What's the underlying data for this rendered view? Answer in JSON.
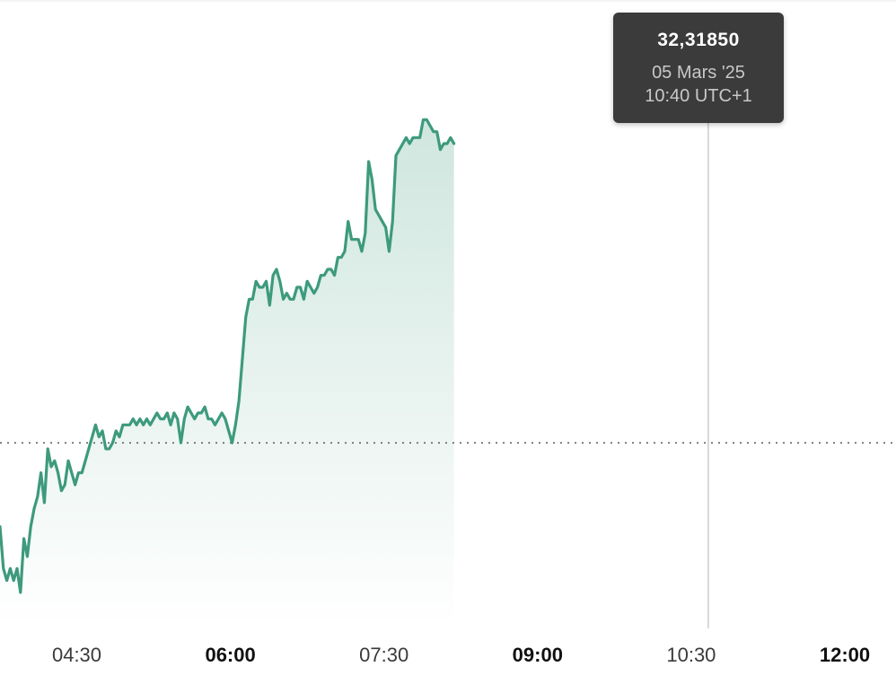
{
  "tooltip": {
    "value": "32,31850",
    "date": "05 Mars '25",
    "time": "10:40 UTC+1"
  },
  "colors": {
    "line": "#3d9a7d",
    "area_top": "#cfe6de",
    "area_bottom": "#ffffff",
    "reference_line": "#555555",
    "crosshair": "#cccccc",
    "tooltip_bg": "#3b3b3b"
  },
  "chart_data": {
    "type": "area",
    "title": "",
    "xlabel": "",
    "ylabel": "",
    "x_ticks": [
      {
        "label": "04:30",
        "major": false
      },
      {
        "label": "06:00",
        "major": true
      },
      {
        "label": "07:30",
        "major": false
      },
      {
        "label": "09:00",
        "major": true
      },
      {
        "label": "10:30",
        "major": false
      },
      {
        "label": "12:00",
        "major": true
      }
    ],
    "x_range_minutes": [
      225,
      750
    ],
    "y_range": [
      31.4,
      32.45
    ],
    "reference_value": 31.71,
    "grid": false,
    "legend": "none",
    "highlight": {
      "minute": 640,
      "value": 32.3185
    },
    "series": [
      {
        "points": [
          [
            225,
            31.57
          ],
          [
            227,
            31.5
          ],
          [
            229,
            31.48
          ],
          [
            231,
            31.5
          ],
          [
            233,
            31.48
          ],
          [
            235,
            31.5
          ],
          [
            237,
            31.46
          ],
          [
            239,
            31.55
          ],
          [
            241,
            31.52
          ],
          [
            243,
            31.57
          ],
          [
            245,
            31.6
          ],
          [
            247,
            31.62
          ],
          [
            249,
            31.66
          ],
          [
            251,
            31.61
          ],
          [
            253,
            31.7
          ],
          [
            255,
            31.67
          ],
          [
            257,
            31.68
          ],
          [
            259,
            31.66
          ],
          [
            261,
            31.63
          ],
          [
            263,
            31.64
          ],
          [
            265,
            31.68
          ],
          [
            267,
            31.66
          ],
          [
            269,
            31.64
          ],
          [
            271,
            31.66
          ],
          [
            273,
            31.66
          ],
          [
            275,
            31.68
          ],
          [
            277,
            31.7
          ],
          [
            279,
            31.72
          ],
          [
            281,
            31.74
          ],
          [
            283,
            31.72
          ],
          [
            285,
            31.73
          ],
          [
            287,
            31.7
          ],
          [
            289,
            31.7
          ],
          [
            291,
            31.71
          ],
          [
            293,
            31.73
          ],
          [
            295,
            31.72
          ],
          [
            297,
            31.74
          ],
          [
            299,
            31.74
          ],
          [
            301,
            31.74
          ],
          [
            303,
            31.75
          ],
          [
            305,
            31.74
          ],
          [
            307,
            31.75
          ],
          [
            309,
            31.74
          ],
          [
            311,
            31.75
          ],
          [
            313,
            31.74
          ],
          [
            315,
            31.75
          ],
          [
            317,
            31.76
          ],
          [
            319,
            31.75
          ],
          [
            321,
            31.75
          ],
          [
            323,
            31.76
          ],
          [
            325,
            31.74
          ],
          [
            327,
            31.76
          ],
          [
            329,
            31.75
          ],
          [
            331,
            31.71
          ],
          [
            333,
            31.75
          ],
          [
            335,
            31.77
          ],
          [
            337,
            31.76
          ],
          [
            339,
            31.75
          ],
          [
            341,
            31.76
          ],
          [
            343,
            31.76
          ],
          [
            345,
            31.77
          ],
          [
            347,
            31.75
          ],
          [
            349,
            31.75
          ],
          [
            351,
            31.74
          ],
          [
            353,
            31.75
          ],
          [
            355,
            31.76
          ],
          [
            357,
            31.75
          ],
          [
            359,
            31.73
          ],
          [
            361,
            31.71
          ],
          [
            363,
            31.74
          ],
          [
            365,
            31.78
          ],
          [
            367,
            31.85
          ],
          [
            369,
            31.92
          ],
          [
            371,
            31.95
          ],
          [
            373,
            31.95
          ],
          [
            375,
            31.98
          ],
          [
            377,
            31.97
          ],
          [
            379,
            31.97
          ],
          [
            381,
            31.98
          ],
          [
            383,
            31.94
          ],
          [
            385,
            31.99
          ],
          [
            387,
            32.0
          ],
          [
            389,
            31.98
          ],
          [
            391,
            31.95
          ],
          [
            393,
            31.96
          ],
          [
            395,
            31.95
          ],
          [
            397,
            31.95
          ],
          [
            399,
            31.97
          ],
          [
            401,
            31.97
          ],
          [
            403,
            31.95
          ],
          [
            405,
            31.98
          ],
          [
            407,
            31.97
          ],
          [
            409,
            31.96
          ],
          [
            411,
            31.97
          ],
          [
            413,
            31.99
          ],
          [
            415,
            31.99
          ],
          [
            417,
            32.0
          ],
          [
            419,
            32.0
          ],
          [
            421,
            31.99
          ],
          [
            423,
            32.02
          ],
          [
            425,
            32.02
          ],
          [
            427,
            32.03
          ],
          [
            429,
            32.08
          ],
          [
            431,
            32.05
          ],
          [
            433,
            32.05
          ],
          [
            435,
            32.05
          ],
          [
            437,
            32.03
          ],
          [
            439,
            32.06
          ],
          [
            441,
            32.18
          ],
          [
            443,
            32.15
          ],
          [
            445,
            32.1
          ],
          [
            447,
            32.09
          ],
          [
            449,
            32.08
          ],
          [
            451,
            32.07
          ],
          [
            453,
            32.03
          ],
          [
            455,
            32.08
          ],
          [
            457,
            32.19
          ],
          [
            459,
            32.2
          ],
          [
            461,
            32.21
          ],
          [
            463,
            32.22
          ],
          [
            465,
            32.21
          ],
          [
            467,
            32.22
          ],
          [
            469,
            32.22
          ],
          [
            471,
            32.22
          ],
          [
            473,
            32.25
          ],
          [
            475,
            32.25
          ],
          [
            477,
            32.24
          ],
          [
            479,
            32.23
          ],
          [
            481,
            32.23
          ],
          [
            483,
            32.2
          ],
          [
            485,
            32.21
          ],
          [
            487,
            32.21
          ],
          [
            489,
            32.22
          ],
          [
            491,
            32.21
          ]
        ]
      }
    ]
  }
}
